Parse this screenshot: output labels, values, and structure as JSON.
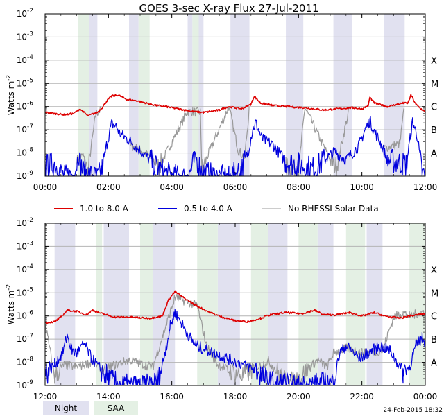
{
  "title": "GOES 3-sec X-ray Flux   27-Jul-2011",
  "ylabel_main": "Watts m",
  "ylabel_exp": "-2",
  "footer_date": "24-Feb-2015 18:32",
  "colors": {
    "long": "#dd0000",
    "short": "#0000dd",
    "norhessi": "#999999",
    "night": "#e1e1f0",
    "saa": "#e4f0e4",
    "grid": "#b4b4b4"
  },
  "legend": {
    "long": "1.0 to 8.0 A",
    "short": "0.5 to 4.0 A",
    "norhessi": "No RHESSI Solar Data",
    "night": "Night",
    "saa": "SAA"
  },
  "y_ticks": [
    {
      "exp": -2,
      "base": "10",
      "sup": "-2"
    },
    {
      "exp": -3,
      "base": "10",
      "sup": "-3"
    },
    {
      "exp": -4,
      "base": "10",
      "sup": "-4"
    },
    {
      "exp": -5,
      "base": "10",
      "sup": "-5"
    },
    {
      "exp": -6,
      "base": "10",
      "sup": "-6"
    },
    {
      "exp": -7,
      "base": "10",
      "sup": "-7"
    },
    {
      "exp": -8,
      "base": "10",
      "sup": "-8"
    },
    {
      "exp": -9,
      "base": "10",
      "sup": "-9"
    }
  ],
  "flare_classes": [
    {
      "label": "X",
      "exp": -4
    },
    {
      "label": "M",
      "exp": -5
    },
    {
      "label": "C",
      "exp": -6
    },
    {
      "label": "B",
      "exp": -7
    },
    {
      "label": "A",
      "exp": -8
    }
  ],
  "chart_data": [
    {
      "type": "line",
      "title": "GOES 3-sec X-ray Flux   27-Jul-2011",
      "ylabel": "Watts m-2",
      "yscale": "log",
      "ylim": [
        1e-09,
        0.01
      ],
      "xlim": [
        0,
        12
      ],
      "x_ticks": [
        "00:00",
        "02:00",
        "04:00",
        "06:00",
        "08:00",
        "10:00",
        "12:00"
      ],
      "night_intervals": [
        [
          1.4,
          1.65
        ],
        [
          2.65,
          2.95
        ],
        [
          4.5,
          4.65
        ],
        [
          4.85,
          5.0
        ],
        [
          5.85,
          6.45
        ],
        [
          7.6,
          8.15
        ],
        [
          9.1,
          9.7
        ],
        [
          10.7,
          11.35
        ]
      ],
      "saa_intervals": [
        [
          1.05,
          1.4
        ],
        [
          2.95,
          3.3
        ],
        [
          4.65,
          4.85
        ]
      ],
      "series": [
        {
          "name": "1.0 to 8.0 A",
          "color_key": "long",
          "logflux": [
            [
              0.0,
              -6.25
            ],
            [
              0.3,
              -6.3
            ],
            [
              0.6,
              -6.35
            ],
            [
              0.9,
              -6.3
            ],
            [
              1.1,
              -6.1
            ],
            [
              1.35,
              -6.4
            ],
            [
              1.65,
              -6.25
            ],
            [
              1.8,
              -6.05
            ],
            [
              1.95,
              -5.75
            ],
            [
              2.1,
              -5.55
            ],
            [
              2.3,
              -5.5
            ],
            [
              2.6,
              -5.7
            ],
            [
              2.9,
              -5.75
            ],
            [
              3.2,
              -5.85
            ],
            [
              3.5,
              -5.95
            ],
            [
              3.8,
              -6.0
            ],
            [
              4.2,
              -6.1
            ],
            [
              4.6,
              -6.2
            ],
            [
              5.0,
              -6.25
            ],
            [
              5.5,
              -6.15
            ],
            [
              5.8,
              -6.0
            ],
            [
              6.2,
              -6.1
            ],
            [
              6.5,
              -5.9
            ],
            [
              6.6,
              -5.55
            ],
            [
              6.8,
              -5.85
            ],
            [
              7.2,
              -5.95
            ],
            [
              7.6,
              -6.0
            ],
            [
              8.2,
              -6.05
            ],
            [
              8.8,
              -6.15
            ],
            [
              9.2,
              -6.1
            ],
            [
              9.7,
              -6.05
            ],
            [
              10.0,
              -6.1
            ],
            [
              10.2,
              -5.95
            ],
            [
              10.25,
              -5.6
            ],
            [
              10.4,
              -5.85
            ],
            [
              10.8,
              -6.0
            ],
            [
              11.3,
              -5.85
            ],
            [
              11.45,
              -5.85
            ],
            [
              11.55,
              -5.5
            ],
            [
              11.7,
              -5.9
            ],
            [
              12.0,
              -6.25
            ]
          ]
        },
        {
          "name": "0.5 to 4.0 A",
          "color_key": "short",
          "logflux": [
            [
              0.0,
              -8.6
            ],
            [
              0.3,
              -8.45
            ],
            [
              0.6,
              -9.05
            ],
            [
              0.9,
              -8.95
            ],
            [
              1.05,
              -8.2
            ],
            [
              1.2,
              -8.8
            ],
            [
              1.65,
              -9.1
            ],
            [
              1.8,
              -8.7
            ],
            [
              1.95,
              -7.6
            ],
            [
              2.1,
              -6.75
            ],
            [
              2.25,
              -6.85
            ],
            [
              2.35,
              -7.15
            ],
            [
              2.7,
              -7.5
            ],
            [
              3.0,
              -7.9
            ],
            [
              3.3,
              -8.3
            ],
            [
              3.6,
              -8.7
            ],
            [
              4.0,
              -9.0
            ],
            [
              4.5,
              -9.1
            ],
            [
              4.75,
              -8.2
            ],
            [
              4.95,
              -8.8
            ],
            [
              5.3,
              -9.0
            ],
            [
              5.8,
              -9.1
            ],
            [
              6.2,
              -8.7
            ],
            [
              6.4,
              -8.0
            ],
            [
              6.55,
              -7.0
            ],
            [
              6.65,
              -6.7
            ],
            [
              6.85,
              -7.4
            ],
            [
              7.2,
              -7.65
            ],
            [
              7.6,
              -8.4
            ],
            [
              8.0,
              -8.5
            ],
            [
              8.5,
              -8.7
            ],
            [
              8.9,
              -8.2
            ],
            [
              9.15,
              -7.95
            ],
            [
              9.5,
              -8.3
            ],
            [
              9.9,
              -7.7
            ],
            [
              10.1,
              -7.0
            ],
            [
              10.25,
              -6.6
            ],
            [
              10.4,
              -7.1
            ],
            [
              10.6,
              -7.6
            ],
            [
              10.8,
              -8.3
            ],
            [
              11.4,
              -8.5
            ],
            [
              11.6,
              -6.65
            ],
            [
              11.75,
              -7.3
            ],
            [
              11.9,
              -8.9
            ],
            [
              12.0,
              -9.05
            ]
          ]
        },
        {
          "name": "No RHESSI Solar Data",
          "color_key": "norhessi",
          "logflux": [
            [
              1.0,
              -8.3
            ],
            [
              1.2,
              -8.1
            ],
            [
              1.35,
              -8.8
            ],
            [
              1.6,
              -6.3
            ],
            [
              1.75,
              -6.15
            ],
            [
              2.7,
              -7.7
            ],
            [
              3.0,
              -7.85
            ],
            [
              3.35,
              -8.2
            ],
            [
              3.6,
              -8.6
            ],
            [
              4.5,
              -6.2
            ],
            [
              4.9,
              -6.25
            ],
            [
              4.95,
              -8.7
            ],
            [
              5.8,
              -6.0
            ],
            [
              6.1,
              -7.9
            ],
            [
              6.3,
              -8.2
            ],
            [
              6.45,
              -6.0
            ],
            [
              7.6,
              -8.6
            ],
            [
              8.0,
              -8.75
            ],
            [
              8.2,
              -6.05
            ],
            [
              9.0,
              -8.3
            ],
            [
              9.2,
              -8.6
            ],
            [
              9.6,
              -6.1
            ],
            [
              10.7,
              -7.8
            ],
            [
              11.2,
              -7.6
            ],
            [
              11.35,
              -5.9
            ]
          ]
        }
      ]
    },
    {
      "type": "line",
      "title": "",
      "ylabel": "Watts m-2",
      "yscale": "log",
      "ylim": [
        1e-09,
        0.01
      ],
      "xlim": [
        12,
        24
      ],
      "x_ticks": [
        "12:00",
        "14:00",
        "16:00",
        "18:00",
        "20:00",
        "22:00",
        "00:00"
      ],
      "night_intervals": [
        [
          12.3,
          12.95
        ],
        [
          13.85,
          14.65
        ],
        [
          15.4,
          16.1
        ],
        [
          17.45,
          18.15
        ],
        [
          19.05,
          19.65
        ],
        [
          20.6,
          21.1
        ],
        [
          22.15,
          22.65
        ]
      ],
      "saa_intervals": [
        [
          13.6,
          13.8
        ],
        [
          15.0,
          15.4
        ],
        [
          16.8,
          17.45
        ],
        [
          18.5,
          19.05
        ],
        [
          20.0,
          20.6
        ],
        [
          21.5,
          22.1
        ],
        [
          23.5,
          24.0
        ]
      ],
      "series": [
        {
          "name": "1.0 to 8.0 A",
          "color_key": "long",
          "logflux": [
            [
              12.0,
              -6.3
            ],
            [
              12.3,
              -6.25
            ],
            [
              12.5,
              -6.05
            ],
            [
              12.7,
              -5.75
            ],
            [
              13.0,
              -5.8
            ],
            [
              13.3,
              -5.95
            ],
            [
              13.5,
              -5.75
            ],
            [
              13.8,
              -5.9
            ],
            [
              14.2,
              -6.05
            ],
            [
              14.7,
              -6.05
            ],
            [
              15.3,
              -6.1
            ],
            [
              15.7,
              -6.0
            ],
            [
              15.9,
              -5.3
            ],
            [
              16.1,
              -4.95
            ],
            [
              16.3,
              -5.15
            ],
            [
              16.7,
              -5.5
            ],
            [
              17.2,
              -5.85
            ],
            [
              17.6,
              -6.05
            ],
            [
              18.0,
              -6.2
            ],
            [
              18.4,
              -6.25
            ],
            [
              18.8,
              -6.1
            ],
            [
              19.1,
              -5.95
            ],
            [
              19.6,
              -5.85
            ],
            [
              20.1,
              -5.9
            ],
            [
              20.5,
              -5.75
            ],
            [
              20.8,
              -5.95
            ],
            [
              21.2,
              -5.95
            ],
            [
              21.6,
              -5.85
            ],
            [
              22.0,
              -6.0
            ],
            [
              22.4,
              -5.85
            ],
            [
              22.7,
              -6.0
            ],
            [
              23.2,
              -6.1
            ],
            [
              23.5,
              -6.0
            ],
            [
              24.0,
              -5.9
            ]
          ]
        },
        {
          "name": "0.5 to 4.0 A",
          "color_key": "short",
          "logflux": [
            [
              12.0,
              -8.5
            ],
            [
              12.3,
              -8.1
            ],
            [
              12.55,
              -7.6
            ],
            [
              12.7,
              -6.85
            ],
            [
              12.85,
              -7.5
            ],
            [
              13.0,
              -7.6
            ],
            [
              13.25,
              -7.2
            ],
            [
              13.45,
              -7.8
            ],
            [
              13.7,
              -8.2
            ],
            [
              14.0,
              -8.7
            ],
            [
              14.3,
              -9.0
            ],
            [
              14.6,
              -9.05
            ],
            [
              15.0,
              -9.1
            ],
            [
              15.4,
              -9.0
            ],
            [
              15.6,
              -8.7
            ],
            [
              15.8,
              -7.5
            ],
            [
              15.95,
              -6.45
            ],
            [
              16.1,
              -5.85
            ],
            [
              16.3,
              -6.3
            ],
            [
              16.6,
              -7.0
            ],
            [
              16.8,
              -7.3
            ],
            [
              18.6,
              -8.3
            ],
            [
              18.8,
              -8.5
            ],
            [
              19.0,
              -8.8
            ],
            [
              19.3,
              -9.0
            ],
            [
              19.6,
              -8.9
            ],
            [
              19.8,
              -9.1
            ],
            [
              21.1,
              -8.9
            ],
            [
              21.3,
              -7.6
            ],
            [
              21.5,
              -7.3
            ],
            [
              21.7,
              -7.5
            ],
            [
              21.9,
              -7.85
            ],
            [
              22.3,
              -7.5
            ],
            [
              22.6,
              -7.3
            ],
            [
              22.9,
              -7.5
            ],
            [
              23.1,
              -8.0
            ],
            [
              23.3,
              -8.4
            ],
            [
              23.5,
              -8.2
            ],
            [
              23.7,
              -7.3
            ],
            [
              23.9,
              -6.95
            ],
            [
              24.0,
              -7.15
            ]
          ]
        },
        {
          "name": "No RHESSI Solar Data",
          "color_key": "norhessi",
          "logflux": [
            [
              12.0,
              -6.3
            ],
            [
              12.3,
              -8.6
            ],
            [
              12.6,
              -8.1
            ],
            [
              12.95,
              -8.2
            ],
            [
              13.5,
              -8.0
            ],
            [
              13.8,
              -8.3
            ],
            [
              14.65,
              -7.9
            ],
            [
              15.0,
              -8.05
            ],
            [
              15.4,
              -8.2
            ],
            [
              16.1,
              -5.2
            ],
            [
              16.8,
              -5.55
            ],
            [
              17.1,
              -7.3
            ],
            [
              17.45,
              -8.1
            ],
            [
              18.2,
              -8.6
            ],
            [
              18.5,
              -8.35
            ],
            [
              19.05,
              -7.95
            ],
            [
              19.65,
              -8.9
            ],
            [
              20.0,
              -8.7
            ],
            [
              20.6,
              -7.9
            ],
            [
              20.9,
              -8.2
            ],
            [
              21.1,
              -7.6
            ],
            [
              21.5,
              -7.4
            ],
            [
              22.1,
              -7.6
            ],
            [
              22.65,
              -7.5
            ],
            [
              23.0,
              -6.05
            ],
            [
              23.3,
              -5.85
            ],
            [
              23.5,
              -6.0
            ],
            [
              24.0,
              -5.8
            ]
          ]
        }
      ]
    }
  ]
}
